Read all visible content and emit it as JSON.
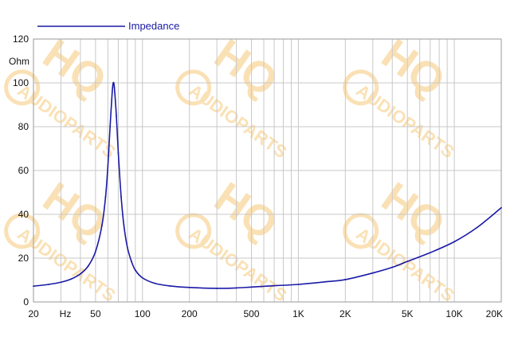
{
  "chart_data": {
    "type": "line",
    "x_scale": "log",
    "xlim": [
      20,
      20000
    ],
    "ylim": [
      0,
      120
    ],
    "grid": true,
    "ylabel": "Ohm",
    "x_unit_label": "Hz",
    "legend_position": "top-left",
    "x_ticks": [
      {
        "value": 20,
        "label": "20"
      },
      {
        "value": 50,
        "label": "50"
      },
      {
        "value": 100,
        "label": "100"
      },
      {
        "value": 200,
        "label": "200"
      },
      {
        "value": 500,
        "label": "500"
      },
      {
        "value": 1000,
        "label": "1K"
      },
      {
        "value": 2000,
        "label": "2K"
      },
      {
        "value": 5000,
        "label": "5K"
      },
      {
        "value": 10000,
        "label": "10K"
      },
      {
        "value": 20000,
        "label": "20K"
      }
    ],
    "y_ticks": [
      0,
      20,
      40,
      60,
      80,
      100,
      120
    ],
    "series": [
      {
        "name": "Impedance",
        "color": "#1a1aa6",
        "points": [
          [
            20,
            7.2
          ],
          [
            25,
            8.0
          ],
          [
            30,
            9.0
          ],
          [
            35,
            10.5
          ],
          [
            40,
            12.8
          ],
          [
            45,
            16.5
          ],
          [
            50,
            23
          ],
          [
            55,
            35
          ],
          [
            58,
            48
          ],
          [
            60,
            62
          ],
          [
            62,
            80
          ],
          [
            64,
            96
          ],
          [
            65,
            100
          ],
          [
            66,
            98
          ],
          [
            68,
            85
          ],
          [
            70,
            68
          ],
          [
            73,
            48
          ],
          [
            76,
            35
          ],
          [
            80,
            25
          ],
          [
            85,
            18.5
          ],
          [
            90,
            14.5
          ],
          [
            100,
            11
          ],
          [
            120,
            8.5
          ],
          [
            150,
            7.3
          ],
          [
            200,
            6.6
          ],
          [
            300,
            6.2
          ],
          [
            400,
            6.4
          ],
          [
            500,
            6.8
          ],
          [
            700,
            7.4
          ],
          [
            1000,
            8.0
          ],
          [
            1500,
            9.2
          ],
          [
            2000,
            10.2
          ],
          [
            3000,
            13.2
          ],
          [
            4000,
            15.8
          ],
          [
            5000,
            18.5
          ],
          [
            7000,
            22.5
          ],
          [
            10000,
            27.5
          ],
          [
            14000,
            34
          ],
          [
            20000,
            43
          ]
        ]
      }
    ]
  },
  "watermark": {
    "brand": "HQ",
    "text": "AUDIOPARTS",
    "color": "#f6c97a"
  }
}
